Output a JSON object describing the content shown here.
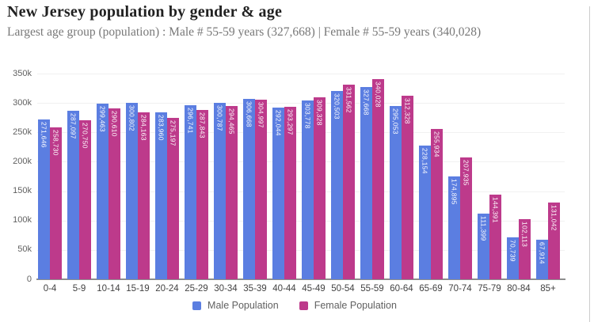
{
  "header": {
    "title": "New Jersey population by gender & age",
    "subtitle": "Largest age group (population) : Male # 55-59 years (327,668) | Female # 55-59 years (340,028)"
  },
  "chart_data": {
    "type": "bar",
    "title": "New Jersey population by gender & age",
    "categories": [
      "0-4",
      "5-9",
      "10-14",
      "15-19",
      "20-24",
      "25-29",
      "30-34",
      "35-39",
      "40-44",
      "45-49",
      "50-54",
      "55-59",
      "60-64",
      "65-69",
      "70-74",
      "75-79",
      "80-84",
      "85+"
    ],
    "series": [
      {
        "name": "Male Population",
        "color": "#5b7ee1",
        "values": [
          271646,
          287097,
          299463,
          300802,
          283960,
          296741,
          300787,
          306668,
          292044,
          303778,
          320503,
          327668,
          295053,
          228154,
          174895,
          111399,
          70739,
          67914
        ]
      },
      {
        "name": "Female Population",
        "color": "#bd3a8b",
        "values": [
          258730,
          270750,
          290610,
          284163,
          275197,
          287843,
          294465,
          304997,
          293297,
          309328,
          331562,
          340028,
          312328,
          255934,
          207935,
          144391,
          102113,
          131042
        ]
      }
    ],
    "xlabel": "",
    "ylabel": "",
    "ylim": [
      0,
      350000
    ],
    "ytick_interval": 50000,
    "ytick_labels": [
      "0",
      "50k",
      "100k",
      "150k",
      "200k",
      "250k",
      "300k",
      "350k"
    ],
    "grid": true,
    "legend_position": "bottom",
    "bar_value_labels": "inside-vertical-white"
  },
  "colors": {
    "male": "#5b7ee1",
    "female": "#bd3a8b",
    "grid": "#f1f1f1",
    "axis": "#8e8e8e",
    "axis_text": "#616161",
    "title_text": "#212121",
    "subtitle_text": "#787878",
    "border": "#cccccc"
  }
}
